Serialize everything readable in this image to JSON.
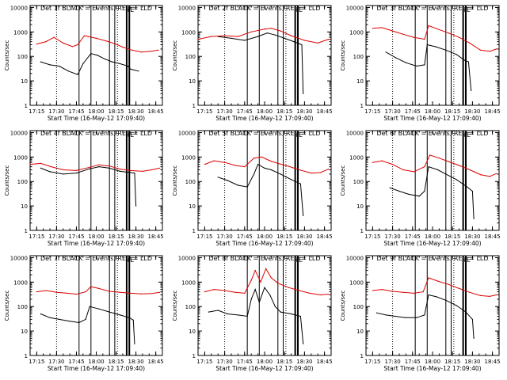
{
  "chart_data": [
    {
      "type": "line",
      "title": "Det 1f BLACK = Events, RED = LLD",
      "xlabel": "Start Time (16-May-12 17:09:40)",
      "ylabel": "Counts/sec",
      "xlim": [
        "17:10",
        "18:50"
      ],
      "ylim": [
        1,
        12000
      ],
      "yscale": "log",
      "x_ticks": [
        "17:15",
        "17:30",
        "17:45",
        "18:00",
        "18:15",
        "18:30",
        "18:45"
      ],
      "y_ticks": [
        "1",
        "10",
        "100",
        "1000",
        "10000"
      ],
      "dotted_vlines": [
        "17:30",
        "18:16"
      ],
      "solid_vlines": [
        "17:47",
        "17:56",
        "18:10",
        "18:14",
        "18:23",
        "18:25"
      ],
      "markers": [
        {
          "time": "18:23",
          "label": "F"
        },
        {
          "time": "18:25",
          "label": "E"
        }
      ],
      "series": [
        {
          "color": "#000000",
          "x": [
            "17:18",
            "17:25",
            "17:32",
            "17:39",
            "17:46",
            "17:50",
            "17:56",
            "18:01",
            "18:06",
            "18:12",
            "18:18",
            "18:24",
            "18:26",
            "18:32"
          ],
          "values": [
            60,
            45,
            40,
            25,
            18,
            50,
            130,
            110,
            80,
            60,
            50,
            40,
            30,
            25
          ]
        },
        {
          "color": "#dd0000",
          "x": [
            "17:15",
            "17:22",
            "17:28",
            "17:35",
            "17:42",
            "17:46",
            "17:51",
            "18:00",
            "18:08",
            "18:14",
            "18:20",
            "18:27",
            "18:34",
            "18:41",
            "18:47"
          ],
          "values": [
            320,
            400,
            600,
            350,
            250,
            300,
            700,
            550,
            420,
            330,
            240,
            180,
            150,
            160,
            180
          ]
        }
      ]
    },
    {
      "type": "line",
      "title": "Det 2f BLACK = Events, RED = LLD",
      "xlabel": "Start Time (16-May-12 17:09:40)",
      "ylabel": "Counts/sec",
      "xlim": [
        "17:10",
        "18:50"
      ],
      "ylim": [
        1,
        12000
      ],
      "yscale": "log",
      "x_ticks": [
        "17:15",
        "17:30",
        "17:45",
        "18:00",
        "18:15",
        "18:30",
        "18:45"
      ],
      "y_ticks": [
        "1",
        "10",
        "100",
        "1000",
        "10000"
      ],
      "dotted_vlines": [
        "17:30",
        "18:16"
      ],
      "solid_vlines": [
        "17:47",
        "17:56",
        "18:10",
        "18:14",
        "18:23",
        "18:25"
      ],
      "markers": [
        {
          "time": "18:23",
          "label": "F"
        },
        {
          "time": "18:25",
          "label": "E"
        }
      ],
      "series": [
        {
          "color": "#000000",
          "x": [
            "17:25",
            "17:35",
            "17:45",
            "17:55",
            "18:02",
            "18:08",
            "18:15",
            "18:22",
            "18:28",
            "18:29"
          ],
          "values": [
            650,
            550,
            450,
            650,
            900,
            750,
            550,
            400,
            300,
            3
          ]
        },
        {
          "color": "#dd0000",
          "x": [
            "17:10",
            "17:20",
            "17:30",
            "17:40",
            "17:50",
            "18:00",
            "18:05",
            "18:12",
            "18:20",
            "18:30",
            "18:40",
            "18:48"
          ],
          "values": [
            500,
            650,
            700,
            650,
            1000,
            1300,
            1400,
            1100,
            700,
            450,
            350,
            500
          ]
        }
      ]
    },
    {
      "type": "line",
      "title": "Det 3f BLACK = Events, RED = LLD",
      "xlabel": "Start Time (16-May-12 17:09:40)",
      "ylabel": "Counts/sec",
      "xlim": [
        "17:10",
        "18:50"
      ],
      "ylim": [
        1,
        12000
      ],
      "yscale": "log",
      "x_ticks": [
        "17:15",
        "17:30",
        "17:45",
        "18:00",
        "18:15",
        "18:30",
        "18:45"
      ],
      "y_ticks": [
        "1",
        "10",
        "100",
        "1000",
        "10000"
      ],
      "dotted_vlines": [
        "17:30",
        "18:16"
      ],
      "solid_vlines": [
        "17:47",
        "17:56",
        "18:10",
        "18:14",
        "18:23",
        "18:25"
      ],
      "markers": [
        {
          "time": "18:23",
          "label": "F"
        },
        {
          "time": "18:25",
          "label": "E"
        }
      ],
      "series": [
        {
          "color": "#000000",
          "x": [
            "17:25",
            "17:32",
            "17:40",
            "17:48",
            "17:54",
            "17:56",
            "18:02",
            "18:10",
            "18:18",
            "18:24",
            "18:27",
            "18:29"
          ],
          "values": [
            150,
            90,
            55,
            40,
            45,
            300,
            250,
            180,
            120,
            70,
            60,
            4
          ]
        },
        {
          "color": "#dd0000",
          "x": [
            "17:15",
            "17:22",
            "17:30",
            "17:38",
            "17:46",
            "17:54",
            "17:57",
            "18:04",
            "18:12",
            "18:20",
            "18:28",
            "18:36",
            "18:43",
            "18:48"
          ],
          "values": [
            1400,
            1500,
            1100,
            800,
            600,
            500,
            1800,
            1300,
            900,
            600,
            350,
            180,
            160,
            200
          ]
        }
      ]
    },
    {
      "type": "line",
      "title": "Det 4f BLACK = Events, RED = LLD",
      "xlabel": "Start Time (16-May-12 17:09:40)",
      "ylabel": "Counts/sec",
      "xlim": [
        "17:10",
        "18:50"
      ],
      "ylim": [
        1,
        12000
      ],
      "yscale": "log",
      "x_ticks": [
        "17:15",
        "17:30",
        "17:45",
        "18:00",
        "18:15",
        "18:30",
        "18:45"
      ],
      "y_ticks": [
        "1",
        "10",
        "100",
        "1000",
        "10000"
      ],
      "dotted_vlines": [
        "17:30",
        "18:16"
      ],
      "solid_vlines": [
        "17:47",
        "17:56",
        "18:10",
        "18:14",
        "18:23",
        "18:25"
      ],
      "markers": [
        {
          "time": "18:23",
          "label": "F"
        },
        {
          "time": "18:25",
          "label": "E"
        }
      ],
      "series": [
        {
          "color": "#000000",
          "x": [
            "17:18",
            "17:25",
            "17:35",
            "17:45",
            "17:55",
            "18:02",
            "18:10",
            "18:18",
            "18:26",
            "18:29",
            "18:30"
          ],
          "values": [
            350,
            250,
            200,
            220,
            330,
            400,
            350,
            260,
            230,
            220,
            10
          ]
        },
        {
          "color": "#dd0000",
          "x": [
            "17:10",
            "17:18",
            "17:26",
            "17:35",
            "17:45",
            "17:55",
            "18:02",
            "18:10",
            "18:18",
            "18:26",
            "18:35",
            "18:42",
            "18:48"
          ],
          "values": [
            500,
            550,
            400,
            300,
            280,
            380,
            480,
            430,
            320,
            280,
            260,
            300,
            350
          ]
        }
      ]
    },
    {
      "type": "line",
      "title": "Det 5f BLACK = Events, RED = LLD",
      "xlabel": "Start Time (16-May-12 17:09:40)",
      "ylabel": "Counts/sec",
      "xlim": [
        "17:10",
        "18:50"
      ],
      "ylim": [
        1,
        12000
      ],
      "yscale": "log",
      "x_ticks": [
        "17:15",
        "17:30",
        "17:45",
        "18:00",
        "18:15",
        "18:30",
        "18:45"
      ],
      "y_ticks": [
        "1",
        "10",
        "100",
        "1000",
        "10000"
      ],
      "dotted_vlines": [
        "17:30",
        "18:16"
      ],
      "solid_vlines": [
        "17:47",
        "17:56",
        "18:10",
        "18:14",
        "18:23",
        "18:25"
      ],
      "markers": [
        {
          "time": "18:23",
          "label": "F"
        },
        {
          "time": "18:25",
          "label": "E"
        }
      ],
      "series": [
        {
          "color": "#000000",
          "x": [
            "17:25",
            "17:32",
            "17:40",
            "17:47",
            "17:52",
            "17:55",
            "18:00",
            "18:05",
            "18:12",
            "18:20",
            "18:27",
            "18:29"
          ],
          "values": [
            150,
            110,
            70,
            60,
            200,
            500,
            350,
            300,
            200,
            120,
            80,
            4
          ]
        },
        {
          "color": "#dd0000",
          "x": [
            "17:15",
            "17:22",
            "17:30",
            "17:38",
            "17:45",
            "17:52",
            "17:58",
            "18:04",
            "18:10",
            "18:18",
            "18:26",
            "18:35",
            "18:42",
            "18:48"
          ],
          "values": [
            500,
            700,
            600,
            450,
            400,
            900,
            1000,
            700,
            550,
            420,
            300,
            220,
            230,
            320
          ]
        }
      ]
    },
    {
      "type": "line",
      "title": "Det 6f BLACK = Events, RED = LLD",
      "xlabel": "Start Time (16-May-12 17:09:40)",
      "ylabel": "Counts/sec",
      "xlim": [
        "17:10",
        "18:50"
      ],
      "ylim": [
        1,
        12000
      ],
      "yscale": "log",
      "x_ticks": [
        "17:15",
        "17:30",
        "17:45",
        "18:00",
        "18:15",
        "18:30",
        "18:45"
      ],
      "y_ticks": [
        "1",
        "10",
        "100",
        "1000",
        "10000"
      ],
      "dotted_vlines": [
        "17:30",
        "18:16"
      ],
      "solid_vlines": [
        "17:47",
        "17:56",
        "18:10",
        "18:14",
        "18:23",
        "18:25"
      ],
      "markers": [
        {
          "time": "18:23",
          "label": "F"
        },
        {
          "time": "18:25",
          "label": "E"
        }
      ],
      "series": [
        {
          "color": "#000000",
          "x": [
            "17:28",
            "17:35",
            "17:42",
            "17:50",
            "17:54",
            "17:57",
            "18:04",
            "18:10",
            "18:18",
            "18:26",
            "18:30",
            "18:31"
          ],
          "values": [
            55,
            40,
            30,
            25,
            40,
            400,
            300,
            200,
            120,
            60,
            40,
            3
          ]
        },
        {
          "color": "#dd0000",
          "x": [
            "17:15",
            "17:22",
            "17:30",
            "17:38",
            "17:46",
            "17:54",
            "17:58",
            "18:05",
            "18:12",
            "18:20",
            "18:28",
            "18:36",
            "18:43",
            "18:48"
          ],
          "values": [
            600,
            700,
            500,
            300,
            250,
            400,
            1200,
            900,
            650,
            450,
            300,
            190,
            160,
            210
          ]
        }
      ]
    },
    {
      "type": "line",
      "title": "Det 7f BLACK = Events, RED = LLD",
      "xlabel": "Start Time (16-May-12 17:09:40)",
      "ylabel": "Counts/sec",
      "xlim": [
        "17:10",
        "18:50"
      ],
      "ylim": [
        1,
        12000
      ],
      "yscale": "log",
      "x_ticks": [
        "17:15",
        "17:30",
        "17:45",
        "18:00",
        "18:15",
        "18:30",
        "18:45"
      ],
      "y_ticks": [
        "1",
        "10",
        "100",
        "1000",
        "10000"
      ],
      "dotted_vlines": [
        "17:30",
        "18:16"
      ],
      "solid_vlines": [
        "17:47",
        "17:56",
        "18:10",
        "18:14",
        "18:23",
        "18:25"
      ],
      "markers": [
        {
          "time": "18:23",
          "label": "F"
        },
        {
          "time": "18:25",
          "label": "E"
        }
      ],
      "series": [
        {
          "color": "#000000",
          "x": [
            "17:18",
            "17:25",
            "17:32",
            "17:40",
            "17:47",
            "17:52",
            "17:55",
            "18:02",
            "18:10",
            "18:18",
            "18:25",
            "18:28",
            "18:29"
          ],
          "values": [
            50,
            35,
            30,
            25,
            22,
            30,
            100,
            80,
            60,
            45,
            35,
            28,
            3
          ]
        },
        {
          "color": "#dd0000",
          "x": [
            "17:15",
            "17:22",
            "17:30",
            "17:38",
            "17:45",
            "17:52",
            "17:56",
            "18:02",
            "18:10",
            "18:18",
            "18:26",
            "18:34",
            "18:42",
            "18:48"
          ],
          "values": [
            400,
            450,
            380,
            350,
            320,
            400,
            650,
            550,
            420,
            380,
            350,
            330,
            340,
            380
          ]
        }
      ]
    },
    {
      "type": "line",
      "title": "Det 8f BLACK = Events, RED = LLD",
      "xlabel": "Start Time (16-May-12 17:09:40)",
      "ylabel": "Counts/sec",
      "xlim": [
        "17:10",
        "18:50"
      ],
      "ylim": [
        1,
        12000
      ],
      "yscale": "log",
      "x_ticks": [
        "17:15",
        "17:30",
        "17:45",
        "18:00",
        "18:15",
        "18:30",
        "18:45"
      ],
      "y_ticks": [
        "1",
        "10",
        "100",
        "1000",
        "10000"
      ],
      "dotted_vlines": [
        "17:30",
        "18:16"
      ],
      "solid_vlines": [
        "17:47",
        "17:56",
        "18:10",
        "18:14",
        "18:23",
        "18:25"
      ],
      "markers": [
        {
          "time": "18:23",
          "label": "F"
        },
        {
          "time": "18:25",
          "label": "E"
        }
      ],
      "series": [
        {
          "color": "#000000",
          "x": [
            "17:18",
            "17:25",
            "17:32",
            "17:40",
            "17:47",
            "17:50",
            "17:53",
            "17:56",
            "18:00",
            "18:04",
            "18:08",
            "18:12",
            "18:20",
            "18:27",
            "18:29"
          ],
          "values": [
            60,
            70,
            50,
            45,
            40,
            200,
            500,
            150,
            600,
            300,
            100,
            60,
            50,
            40,
            3
          ]
        },
        {
          "color": "#dd0000",
          "x": [
            "17:15",
            "17:22",
            "17:30",
            "17:38",
            "17:45",
            "17:50",
            "17:53",
            "17:57",
            "18:01",
            "18:05",
            "18:10",
            "18:18",
            "18:26",
            "18:34",
            "18:42",
            "18:48"
          ],
          "values": [
            400,
            500,
            450,
            380,
            350,
            1200,
            3000,
            1000,
            3500,
            1500,
            900,
            600,
            450,
            350,
            300,
            320
          ]
        }
      ]
    },
    {
      "type": "line",
      "title": "Det 9f BLACK = Events, RED = LLD",
      "xlabel": "Start Time (16-May-12 17:09:40)",
      "ylabel": "Counts/sec",
      "xlim": [
        "17:10",
        "18:50"
      ],
      "ylim": [
        1,
        12000
      ],
      "yscale": "log",
      "x_ticks": [
        "17:15",
        "17:30",
        "17:45",
        "18:00",
        "18:15",
        "18:30",
        "18:45"
      ],
      "y_ticks": [
        "1",
        "10",
        "100",
        "1000",
        "10000"
      ],
      "dotted_vlines": [
        "17:30",
        "18:16"
      ],
      "solid_vlines": [
        "17:47",
        "17:56",
        "18:10",
        "18:14",
        "18:23",
        "18:25"
      ],
      "markers": [
        {
          "time": "18:23",
          "label": "F"
        },
        {
          "time": "18:25",
          "label": "E"
        }
      ],
      "series": [
        {
          "color": "#000000",
          "x": [
            "17:18",
            "17:25",
            "17:32",
            "17:40",
            "17:48",
            "17:54",
            "17:57",
            "18:03",
            "18:10",
            "18:18",
            "18:25",
            "18:30",
            "18:31"
          ],
          "values": [
            55,
            45,
            40,
            35,
            35,
            45,
            300,
            250,
            180,
            110,
            60,
            30,
            5
          ]
        },
        {
          "color": "#dd0000",
          "x": [
            "17:15",
            "17:22",
            "17:30",
            "17:38",
            "17:46",
            "17:53",
            "17:57",
            "18:04",
            "18:12",
            "18:20",
            "18:28",
            "18:36",
            "18:43",
            "18:48"
          ],
          "values": [
            450,
            500,
            420,
            380,
            350,
            400,
            1500,
            1100,
            800,
            550,
            380,
            280,
            260,
            300
          ]
        }
      ]
    }
  ]
}
